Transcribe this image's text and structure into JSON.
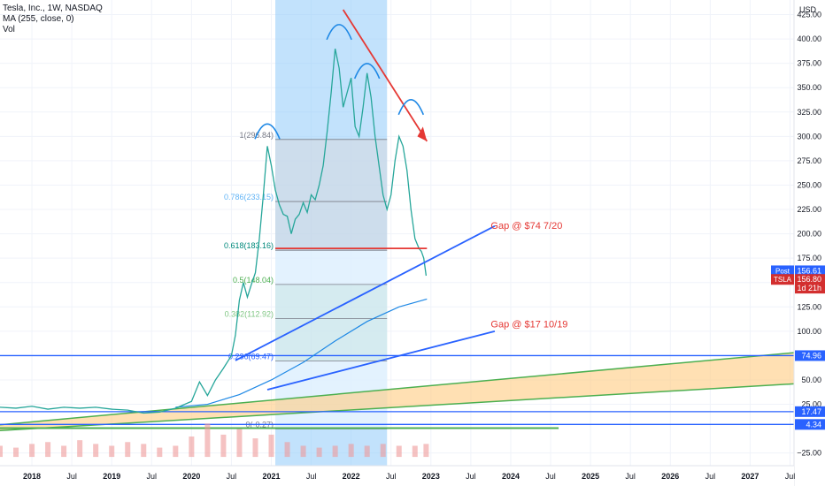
{
  "legend": {
    "symbol": "Tesla, Inc., 1W, NASDAQ",
    "ma": "MA (255, close, 0)",
    "vol": "Vol"
  },
  "chart_data": {
    "type": "line",
    "title": "",
    "currency": "USD",
    "y_ticks": [
      -25,
      25,
      50,
      75,
      100,
      125,
      150,
      175,
      200,
      225,
      250,
      275,
      300,
      325,
      350,
      375,
      400,
      425
    ],
    "y_tick_labels": [
      "−25.00",
      "25.00",
      "50.00",
      "75.00",
      "100.00",
      "125.00",
      "150.00",
      "175.00",
      "200.00",
      "225.00",
      "250.00",
      "275.00",
      "300.00",
      "325.00",
      "350.00",
      "375.00",
      "400.00",
      "425.00"
    ],
    "x_ticks": [
      {
        "t": 2018.0,
        "label": "2018",
        "bold": true
      },
      {
        "t": 2018.5,
        "label": "Jul",
        "bold": false
      },
      {
        "t": 2019.0,
        "label": "2019",
        "bold": true
      },
      {
        "t": 2019.5,
        "label": "Jul",
        "bold": false
      },
      {
        "t": 2020.0,
        "label": "2020",
        "bold": true
      },
      {
        "t": 2020.5,
        "label": "Jul",
        "bold": false
      },
      {
        "t": 2021.0,
        "label": "2021",
        "bold": true
      },
      {
        "t": 2021.5,
        "label": "Jul",
        "bold": false
      },
      {
        "t": 2022.0,
        "label": "2022",
        "bold": true
      },
      {
        "t": 2022.5,
        "label": "Jul",
        "bold": false
      },
      {
        "t": 2023.0,
        "label": "2023",
        "bold": true
      },
      {
        "t": 2023.5,
        "label": "Jul",
        "bold": false
      },
      {
        "t": 2024.0,
        "label": "2024",
        "bold": true
      },
      {
        "t": 2024.5,
        "label": "Jul",
        "bold": false
      },
      {
        "t": 2025.0,
        "label": "2025",
        "bold": true
      },
      {
        "t": 2025.5,
        "label": "Jul",
        "bold": false
      },
      {
        "t": 2026.0,
        "label": "2026",
        "bold": true
      },
      {
        "t": 2026.5,
        "label": "Jul",
        "bold": false
      },
      {
        "t": 2027.0,
        "label": "2027",
        "bold": true
      },
      {
        "t": 2027.5,
        "label": "Jul",
        "bold": false
      }
    ],
    "price_series": {
      "name": "TSLA",
      "x": [
        2017.6,
        2017.8,
        2018.0,
        2018.2,
        2018.4,
        2018.6,
        2018.8,
        2019.0,
        2019.2,
        2019.4,
        2019.6,
        2019.8,
        2020.0,
        2020.1,
        2020.2,
        2020.3,
        2020.4,
        2020.5,
        2020.55,
        2020.6,
        2020.65,
        2020.7,
        2020.75,
        2020.8,
        2020.85,
        2020.9,
        2020.95,
        2021.0,
        2021.05,
        2021.1,
        2021.15,
        2021.2,
        2021.25,
        2021.3,
        2021.35,
        2021.4,
        2021.45,
        2021.5,
        2021.55,
        2021.6,
        2021.65,
        2021.7,
        2021.75,
        2021.8,
        2021.85,
        2021.9,
        2021.95,
        2022.0,
        2022.05,
        2022.1,
        2022.15,
        2022.2,
        2022.25,
        2022.3,
        2022.35,
        2022.4,
        2022.45,
        2022.5,
        2022.55,
        2022.6,
        2022.65,
        2022.7,
        2022.75,
        2022.8,
        2022.85,
        2022.88,
        2022.91,
        2022.94
      ],
      "y": [
        22,
        21,
        23,
        20,
        22,
        21,
        22,
        20,
        19,
        16,
        17,
        21,
        28,
        48,
        34,
        50,
        62,
        75,
        96,
        132,
        150,
        135,
        148,
        160,
        195,
        240,
        290,
        270,
        245,
        230,
        220,
        218,
        200,
        215,
        220,
        232,
        222,
        240,
        235,
        250,
        270,
        305,
        345,
        390,
        370,
        330,
        345,
        360,
        310,
        300,
        330,
        365,
        340,
        300,
        270,
        240,
        225,
        240,
        275,
        300,
        290,
        265,
        225,
        195,
        185,
        182,
        175,
        157
      ]
    },
    "ma_series": {
      "x": [
        2019.8,
        2020.2,
        2020.6,
        2021.0,
        2021.4,
        2021.8,
        2022.2,
        2022.6,
        2022.95
      ],
      "y": [
        22,
        25,
        35,
        50,
        68,
        90,
        110,
        125,
        133
      ]
    },
    "volume": {
      "x": [
        2017.6,
        2017.8,
        2018.0,
        2018.2,
        2018.4,
        2018.6,
        2018.8,
        2019.0,
        2019.2,
        2019.4,
        2019.6,
        2019.8,
        2020.0,
        2020.2,
        2020.4,
        2020.6,
        2020.8,
        2021.0,
        2021.2,
        2021.4,
        2021.6,
        2021.8,
        2022.0,
        2022.2,
        2022.4,
        2022.6,
        2022.8,
        2022.94
      ],
      "rel": [
        0.3,
        0.25,
        0.35,
        0.4,
        0.3,
        0.45,
        0.35,
        0.3,
        0.4,
        0.35,
        0.25,
        0.3,
        0.55,
        0.9,
        0.6,
        0.75,
        0.5,
        0.6,
        0.4,
        0.3,
        0.25,
        0.3,
        0.35,
        0.3,
        0.35,
        0.3,
        0.3,
        0.35
      ]
    },
    "fib_levels": [
      {
        "label": "1(296.84)",
        "value": 296.84
      },
      {
        "label": "0.786(233.15)",
        "value": 233.15
      },
      {
        "label": "0.618(183.16)",
        "value": 183.16
      },
      {
        "label": "0.5(148.04)",
        "value": 148.04
      },
      {
        "label": "0.382(112.92)",
        "value": 112.92
      },
      {
        "label": "0.236(69.47)",
        "value": 69.47
      },
      {
        "label": "0(-0.27)",
        "value": -0.27
      }
    ],
    "annotations": [
      {
        "text": "Gap @ $74 7/20",
        "color": "#e53935"
      },
      {
        "text": "Gap @ $17 10/19",
        "color": "#e53935"
      }
    ],
    "axis_badges": [
      {
        "text": "Post",
        "subtext": "156.61",
        "value": 156.61,
        "color": "#2962ff"
      },
      {
        "text": "TSLA",
        "subtext": "156.80",
        "value": 156.8,
        "color": "#d32f2f"
      },
      {
        "text": "1d 21h",
        "subtext": "",
        "value": 146.0,
        "color": "#d32f2f"
      },
      {
        "text": "74.96",
        "subtext": "",
        "value": 74.96,
        "color": "#2962ff"
      },
      {
        "text": "17.47",
        "subtext": "",
        "value": 17.47,
        "color": "#2962ff"
      },
      {
        "text": "4.34",
        "subtext": "",
        "value": 4.34,
        "color": "#2962ff"
      }
    ],
    "horizontal_lines": [
      74.96,
      17.47,
      4.34
    ],
    "colors": {
      "price": "#26a69a",
      "ma": "#1e88e5",
      "trendline_blue": "#2962ff",
      "channel_green": "#4caf50",
      "channel_fill": "#ffcc80",
      "down_arrow": "#e53935",
      "highlight_band": "#90caf9",
      "heads_arc": "#1e88e5"
    },
    "grid": true,
    "ylim": [
      -38,
      440
    ],
    "xlim": [
      2017.6,
      2027.55
    ]
  }
}
